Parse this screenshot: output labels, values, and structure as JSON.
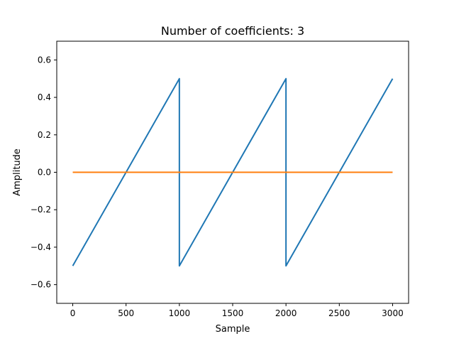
{
  "chart_data": {
    "type": "line",
    "title": "Number of coefficients: 3",
    "xlabel": "Sample",
    "ylabel": "Amplitude",
    "xlim": [
      -150,
      3150
    ],
    "ylim": [
      -0.7,
      0.7
    ],
    "xticks": [
      0,
      500,
      1000,
      1500,
      2000,
      2500,
      3000
    ],
    "yticks": [
      -0.6,
      -0.4,
      -0.2,
      0.0,
      0.2,
      0.4,
      0.6
    ],
    "xtick_labels": [
      "0",
      "500",
      "1000",
      "1500",
      "2000",
      "2500",
      "3000"
    ],
    "ytick_labels": [
      "−0.6",
      "−0.4",
      "−0.2",
      "0.0",
      "0.2",
      "0.4",
      "0.6"
    ],
    "grid": false,
    "series": [
      {
        "color": "#1f77b4",
        "x": [
          0,
          1000,
          1000,
          2000,
          2000,
          3000
        ],
        "y": [
          -0.5,
          0.5,
          -0.5,
          0.5,
          -0.5,
          0.5
        ]
      },
      {
        "color": "#ff7f0e",
        "x": [
          0,
          3000
        ],
        "y": [
          0.0,
          0.0
        ]
      }
    ]
  }
}
